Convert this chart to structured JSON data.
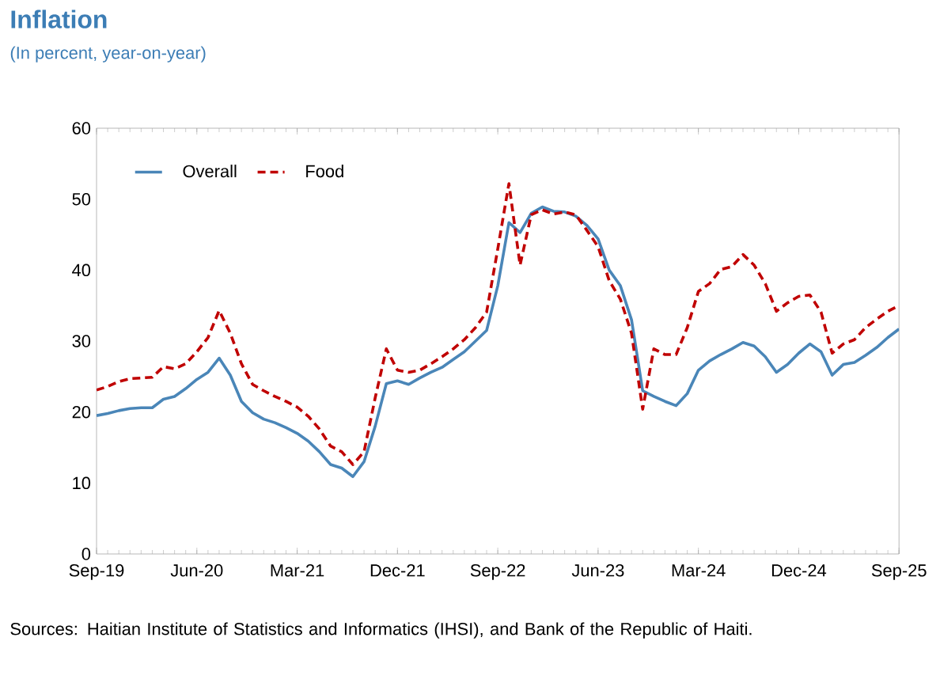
{
  "chart_data": {
    "type": "line",
    "title": "Inflation",
    "subtitle": "(In percent, year-on-year)",
    "x": [
      "2019-09",
      "2019-10",
      "2019-11",
      "2019-12",
      "2020-01",
      "2020-02",
      "2020-03",
      "2020-04",
      "2020-05",
      "2020-06",
      "2020-07",
      "2020-08",
      "2020-09",
      "2020-10",
      "2020-11",
      "2020-12",
      "2021-01",
      "2021-02",
      "2021-03",
      "2021-04",
      "2021-05",
      "2021-06",
      "2021-07",
      "2021-08",
      "2021-09",
      "2021-10",
      "2021-11",
      "2021-12",
      "2022-01",
      "2022-02",
      "2022-03",
      "2022-04",
      "2022-05",
      "2022-06",
      "2022-07",
      "2022-08",
      "2022-09",
      "2022-10",
      "2022-11",
      "2022-12",
      "2023-01",
      "2023-02",
      "2023-03",
      "2023-04",
      "2023-05",
      "2023-06",
      "2023-07",
      "2023-08",
      "2023-09",
      "2023-10",
      "2023-11",
      "2023-12",
      "2024-01",
      "2024-02",
      "2024-03",
      "2024-04",
      "2024-05",
      "2024-06",
      "2024-07",
      "2024-08",
      "2024-09",
      "2024-10",
      "2024-11",
      "2024-12",
      "2025-01",
      "2025-02",
      "2025-03",
      "2025-04",
      "2025-05",
      "2025-06",
      "2025-07",
      "2025-08",
      "2025-09"
    ],
    "series": [
      {
        "name": "Overall",
        "color": "#4a86b8",
        "line_style": "solid",
        "values": [
          19.5,
          19.8,
          20.2,
          20.5,
          20.6,
          20.6,
          21.8,
          22.2,
          23.3,
          24.6,
          25.6,
          27.6,
          25.2,
          21.5,
          19.9,
          19.0,
          18.5,
          17.8,
          17.0,
          15.9,
          14.4,
          12.6,
          12.1,
          10.9,
          13.0,
          18.0,
          24.0,
          24.4,
          23.9,
          24.8,
          25.6,
          26.3,
          27.4,
          28.5,
          30.0,
          31.5,
          37.8,
          46.7,
          45.3,
          48.0,
          48.9,
          48.3,
          48.2,
          47.6,
          46.3,
          44.4,
          40.0,
          37.8,
          33.0,
          23.0,
          22.2,
          21.5,
          20.9,
          22.6,
          25.9,
          27.2,
          28.1,
          28.9,
          29.8,
          29.3,
          27.8,
          25.6,
          26.7,
          28.3,
          29.6,
          28.5,
          25.2,
          26.7,
          27.0,
          28.0,
          29.1,
          30.5,
          31.7
        ]
      },
      {
        "name": "Food",
        "color": "#c00000",
        "line_style": "dashed",
        "values": [
          23.1,
          23.6,
          24.3,
          24.7,
          24.8,
          24.9,
          26.4,
          26.1,
          26.8,
          28.5,
          30.5,
          34.3,
          31.1,
          26.8,
          23.9,
          23.0,
          22.2,
          21.5,
          20.7,
          19.4,
          17.6,
          15.2,
          14.4,
          12.6,
          14.4,
          22.0,
          28.9,
          25.9,
          25.6,
          25.9,
          26.8,
          27.8,
          28.9,
          30.2,
          31.9,
          34.1,
          43.0,
          52.2,
          40.7,
          47.8,
          48.5,
          47.9,
          48.2,
          47.8,
          45.6,
          43.3,
          38.5,
          35.9,
          31.1,
          20.4,
          28.9,
          28.1,
          28.1,
          31.9,
          37.0,
          38.1,
          40.1,
          40.5,
          42.2,
          40.7,
          38.1,
          34.2,
          35.4,
          36.3,
          36.5,
          34.1,
          28.3,
          29.6,
          30.2,
          31.9,
          33.1,
          34.2,
          35.0
        ]
      }
    ],
    "xlim": [
      "2019-09",
      "2025-09"
    ],
    "xticks": [
      {
        "value": "2019-09",
        "label": "Sep-19"
      },
      {
        "value": "2020-06",
        "label": "Jun-20"
      },
      {
        "value": "2021-03",
        "label": "Mar-21"
      },
      {
        "value": "2021-12",
        "label": "Dec-21"
      },
      {
        "value": "2022-09",
        "label": "Sep-22"
      },
      {
        "value": "2023-06",
        "label": "Jun-23"
      },
      {
        "value": "2024-03",
        "label": "Mar-24"
      },
      {
        "value": "2024-12",
        "label": "Dec-24"
      },
      {
        "value": "2025-09",
        "label": "Sep-25"
      }
    ],
    "ylim": [
      0,
      60
    ],
    "yticks": [
      0,
      10,
      20,
      30,
      40,
      50,
      60
    ],
    "grid": false,
    "legend": "top left",
    "marker": "none",
    "annotations": [
      "Sources: Haitian Institute of Statistics and Informatics (IHSI), and Bank of the Republic of Haiti."
    ]
  }
}
